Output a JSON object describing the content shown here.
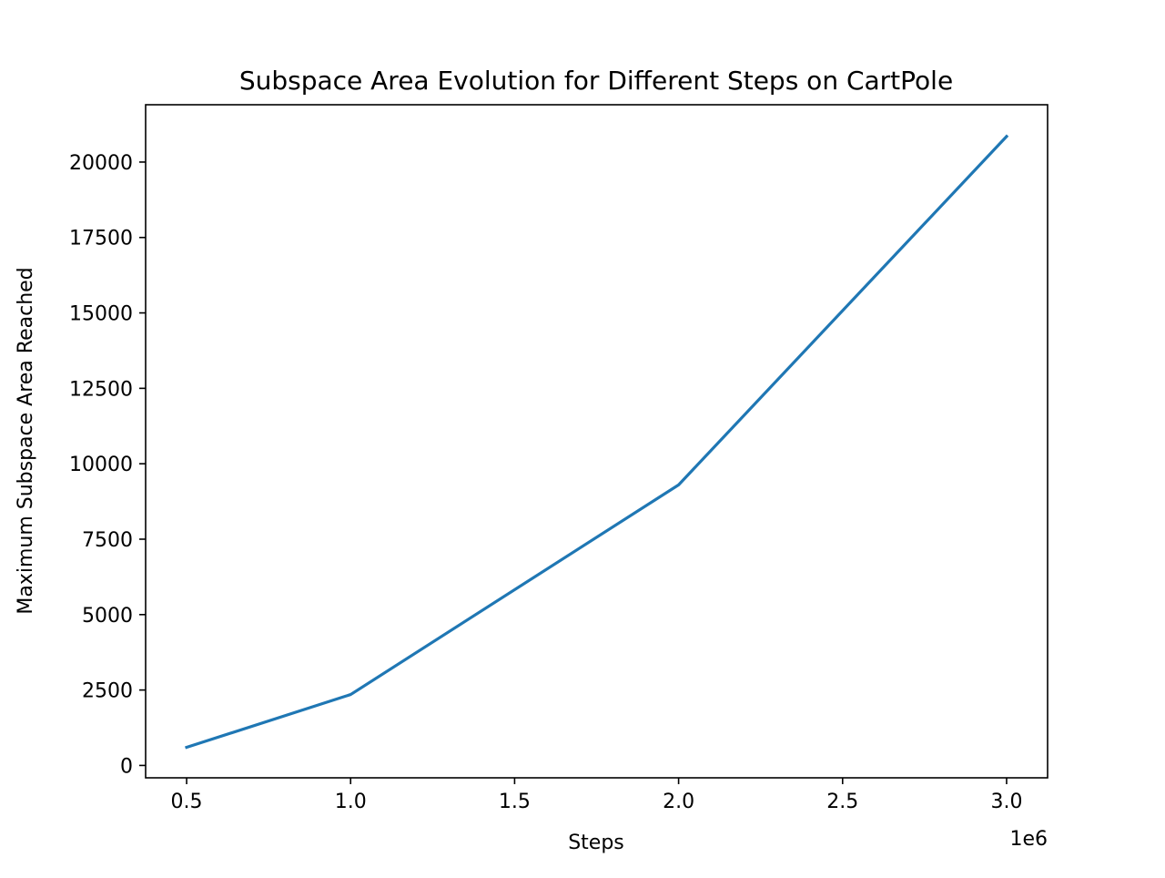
{
  "chart_data": {
    "type": "line",
    "title": "Subspace Area Evolution for Different Steps on CartPole",
    "xlabel": "Steps",
    "ylabel": "Maximum Subspace Area Reached",
    "x_offset_label": "1e6",
    "x_scale_factor": 1000000,
    "x_ticks": [
      0.5,
      1.0,
      1.5,
      2.0,
      2.5,
      3.0
    ],
    "x_tick_labels": [
      "0.5",
      "1.0",
      "1.5",
      "2.0",
      "2.5",
      "3.0"
    ],
    "y_ticks": [
      0,
      2500,
      5000,
      7500,
      10000,
      12500,
      15000,
      17500,
      20000
    ],
    "y_tick_labels": [
      "0",
      "2500",
      "5000",
      "7500",
      "10000",
      "12500",
      "15000",
      "17500",
      "20000"
    ],
    "xlim": [
      375000,
      3125000
    ],
    "ylim": [
      -410,
      21900
    ],
    "grid": false,
    "series": [
      {
        "color": "#1f77b4",
        "x": [
          500000,
          1000000,
          2000000,
          3000000
        ],
        "y": [
          600,
          2350,
          9300,
          20850
        ]
      }
    ]
  }
}
